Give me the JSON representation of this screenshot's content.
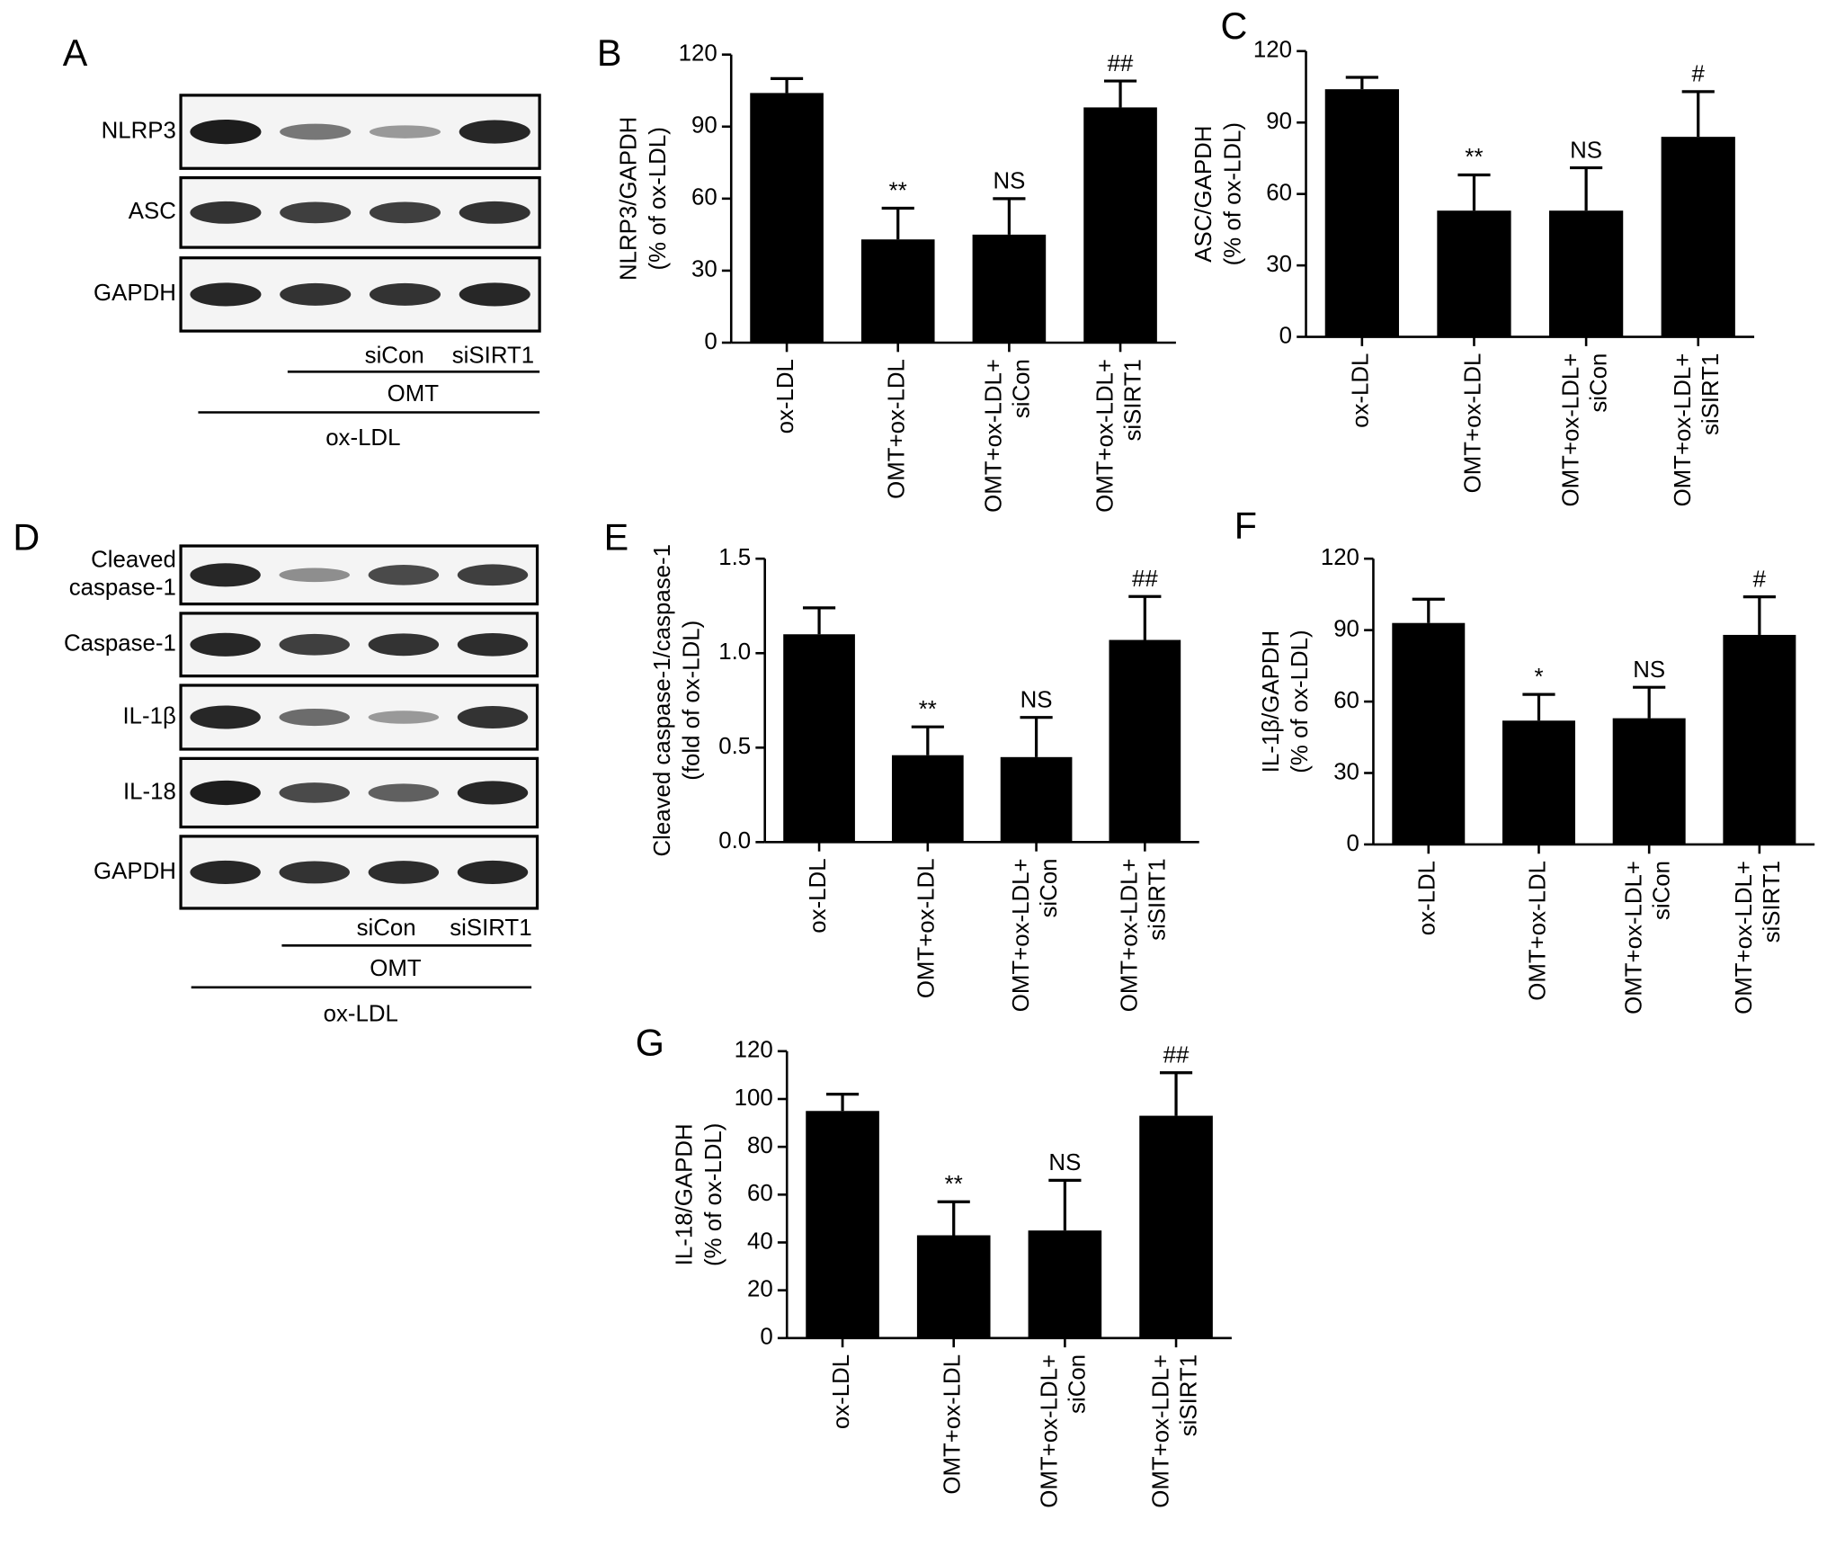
{
  "blots": [
    {
      "panel": "A",
      "rows": [
        [
          "NLRP3"
        ],
        [
          "ASC"
        ],
        [
          "GAPDH"
        ]
      ],
      "lanes": [
        "siCon",
        "siSIRT1"
      ],
      "treatment": "OMT",
      "base": "ox-LDL"
    },
    {
      "panel": "D",
      "rows": [
        [
          "Cleaved",
          "caspase-1"
        ],
        [
          "Caspase-1"
        ],
        [
          "IL-1β"
        ],
        [
          "IL-18"
        ],
        [
          "GAPDH"
        ]
      ],
      "lanes": [
        "siCon",
        "siSIRT1"
      ],
      "treatment": "OMT",
      "base": "ox-LDL"
    }
  ],
  "chart_data": [
    {
      "type": "bar",
      "panel": "B",
      "ylabel": [
        "NLRP3/GAPDH",
        "(% of ox-LDL)"
      ],
      "color": "#000000",
      "categories": [
        [
          "ox-LDL"
        ],
        [
          "OMT+ox-LDL"
        ],
        [
          "OMT+ox-LDL+",
          "siCon"
        ],
        [
          "OMT+ox-LDL+",
          "siSIRT1"
        ]
      ],
      "values": [
        104,
        43,
        45,
        98
      ],
      "errors": [
        6,
        13,
        15,
        11
      ],
      "annotations": [
        null,
        "**",
        "NS",
        "##"
      ],
      "ylim": [
        0,
        120
      ],
      "yticks": [
        0,
        30,
        60,
        90,
        120
      ]
    },
    {
      "type": "bar",
      "panel": "C",
      "ylabel": [
        "ASC/GAPDH",
        "(% of ox-LDL)"
      ],
      "color": "#000000",
      "categories": [
        [
          "ox-LDL"
        ],
        [
          "OMT+ox-LDL"
        ],
        [
          "OMT+ox-LDL+",
          "siCon"
        ],
        [
          "OMT+ox-LDL+",
          "siSIRT1"
        ]
      ],
      "values": [
        104,
        53,
        53,
        84
      ],
      "errors": [
        5,
        15,
        18,
        19
      ],
      "annotations": [
        null,
        "**",
        "NS",
        "#"
      ],
      "ylim": [
        0,
        120
      ],
      "yticks": [
        0,
        30,
        60,
        90,
        120
      ]
    },
    {
      "type": "bar",
      "panel": "E",
      "ylabel": [
        "Cleaved caspase-1/caspase-1",
        "(fold of ox-LDL)"
      ],
      "color": "#000000",
      "categories": [
        [
          "ox-LDL"
        ],
        [
          "OMT+ox-LDL"
        ],
        [
          "OMT+ox-LDL+",
          "siCon"
        ],
        [
          "OMT+ox-LDL+",
          "siSIRT1"
        ]
      ],
      "values": [
        1.1,
        0.46,
        0.45,
        1.07
      ],
      "errors": [
        0.14,
        0.15,
        0.21,
        0.23
      ],
      "annotations": [
        null,
        "**",
        "NS",
        "##"
      ],
      "ylim": [
        0,
        1.5
      ],
      "yticks": [
        {
          "value": 0,
          "label": "0.0"
        },
        0.5,
        {
          "value": 1,
          "label": "1.0"
        },
        1.5
      ]
    },
    {
      "type": "bar",
      "panel": "F",
      "ylabel": [
        "IL-1β/GAPDH",
        "(% of ox-LDL)"
      ],
      "color": "#000000",
      "categories": [
        [
          "ox-LDL"
        ],
        [
          "OMT+ox-LDL"
        ],
        [
          "OMT+ox-LDL+",
          "siCon"
        ],
        [
          "OMT+ox-LDL+",
          "siSIRT1"
        ]
      ],
      "values": [
        93,
        52,
        53,
        88
      ],
      "errors": [
        10,
        11,
        13,
        16
      ],
      "annotations": [
        null,
        "*",
        "NS",
        "#"
      ],
      "ylim": [
        0,
        120
      ],
      "yticks": [
        0,
        30,
        60,
        90,
        120
      ]
    },
    {
      "type": "bar",
      "panel": "G",
      "ylabel": [
        "IL-18/GAPDH",
        "(% of ox-LDL)"
      ],
      "color": "#000000",
      "categories": [
        [
          "ox-LDL"
        ],
        [
          "OMT+ox-LDL"
        ],
        [
          "OMT+ox-LDL+",
          "siCon"
        ],
        [
          "OMT+ox-LDL+",
          "siSIRT1"
        ]
      ],
      "values": [
        95,
        43,
        45,
        93
      ],
      "errors": [
        7,
        14,
        21,
        18
      ],
      "annotations": [
        null,
        "**",
        "NS",
        "##"
      ],
      "ylim": [
        0,
        120
      ],
      "yticks": [
        0,
        20,
        40,
        60,
        80,
        100,
        120
      ]
    }
  ]
}
